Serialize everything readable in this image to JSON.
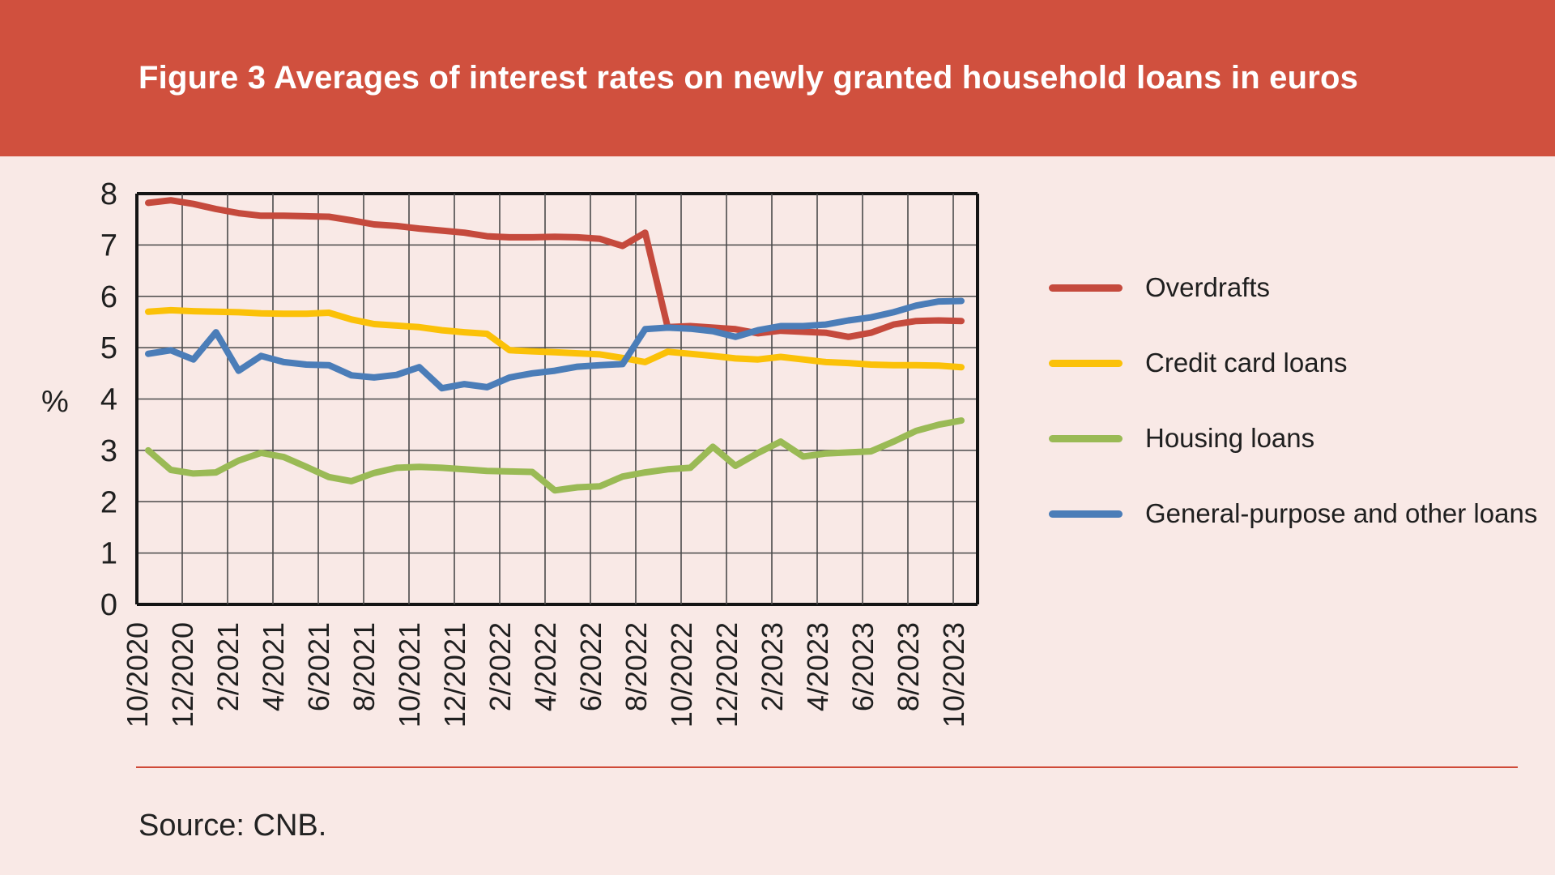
{
  "header": {
    "title": "Figure 3 Averages of interest rates on newly granted household loans in euros",
    "bg_color": "#d0503e"
  },
  "page_bg_color": "#f9e9e6",
  "source_text": "Source: CNB.",
  "separator_color": "#cf4a38",
  "chart_data": {
    "type": "line",
    "title": "Figure 3 Averages of interest rates on newly granted household loans in euros",
    "ylabel": "%",
    "ylim": [
      0,
      8
    ],
    "y_ticks": [
      0,
      1,
      2,
      3,
      4,
      5,
      6,
      7,
      8
    ],
    "grid": true,
    "legend_position": "right",
    "x_tick_labels": [
      "10/2020",
      "12/2020",
      "2/2021",
      "4/2021",
      "6/2021",
      "8/2021",
      "10/2021",
      "12/2021",
      "2/2022",
      "4/2022",
      "6/2022",
      "8/2022",
      "10/2022",
      "12/2022",
      "2/2023",
      "4/2023",
      "6/2023",
      "8/2023",
      "10/2023"
    ],
    "x": [
      "10/2020",
      "11/2020",
      "12/2020",
      "1/2021",
      "2/2021",
      "3/2021",
      "4/2021",
      "5/2021",
      "6/2021",
      "7/2021",
      "8/2021",
      "9/2021",
      "10/2021",
      "11/2021",
      "12/2021",
      "1/2022",
      "2/2022",
      "3/2022",
      "4/2022",
      "5/2022",
      "6/2022",
      "7/2022",
      "8/2022",
      "9/2022",
      "10/2022",
      "11/2022",
      "12/2022",
      "1/2023",
      "2/2023",
      "3/2023",
      "4/2023",
      "5/2023",
      "6/2023",
      "7/2023",
      "8/2023",
      "9/2023",
      "10/2023"
    ],
    "series": [
      {
        "name": "Overdrafts",
        "color": "#c54a3d",
        "values": [
          7.82,
          7.87,
          7.8,
          7.7,
          7.62,
          7.57,
          7.57,
          7.56,
          7.55,
          7.48,
          7.4,
          7.37,
          7.32,
          7.28,
          7.24,
          7.17,
          7.15,
          7.15,
          7.16,
          7.15,
          7.12,
          6.98,
          7.24,
          5.4,
          5.42,
          5.39,
          5.36,
          5.28,
          5.33,
          5.31,
          5.29,
          5.21,
          5.29,
          5.45,
          5.52,
          5.53,
          5.52
        ]
      },
      {
        "name": "Credit card loans",
        "color": "#fbc108",
        "values": [
          5.7,
          5.73,
          5.71,
          5.7,
          5.69,
          5.67,
          5.66,
          5.66,
          5.68,
          5.55,
          5.46,
          5.43,
          5.4,
          5.34,
          5.3,
          5.27,
          4.95,
          4.93,
          4.91,
          4.89,
          4.87,
          4.8,
          4.72,
          4.92,
          4.88,
          4.84,
          4.79,
          4.77,
          4.82,
          4.77,
          4.72,
          4.7,
          4.67,
          4.66,
          4.66,
          4.65,
          4.62
        ]
      },
      {
        "name": "Housing loans",
        "color": "#9aba55",
        "values": [
          3.0,
          2.62,
          2.55,
          2.57,
          2.8,
          2.95,
          2.87,
          2.68,
          2.48,
          2.4,
          2.56,
          2.66,
          2.68,
          2.66,
          2.63,
          2.6,
          2.59,
          2.58,
          2.22,
          2.28,
          2.3,
          2.49,
          2.57,
          2.63,
          2.66,
          3.07,
          2.7,
          2.95,
          3.17,
          2.88,
          2.94,
          2.96,
          2.98,
          3.17,
          3.38,
          3.5,
          3.58
        ]
      },
      {
        "name": "General-purpose and other loans",
        "color": "#4b7db8",
        "values": [
          4.88,
          4.95,
          4.77,
          5.3,
          4.55,
          4.84,
          4.72,
          4.67,
          4.66,
          4.46,
          4.42,
          4.47,
          4.62,
          4.21,
          4.29,
          4.23,
          4.42,
          4.5,
          4.55,
          4.63,
          4.66,
          4.68,
          5.36,
          5.39,
          5.37,
          5.32,
          5.21,
          5.34,
          5.42,
          5.42,
          5.45,
          5.53,
          5.59,
          5.69,
          5.82,
          5.9,
          5.91
        ]
      }
    ]
  }
}
